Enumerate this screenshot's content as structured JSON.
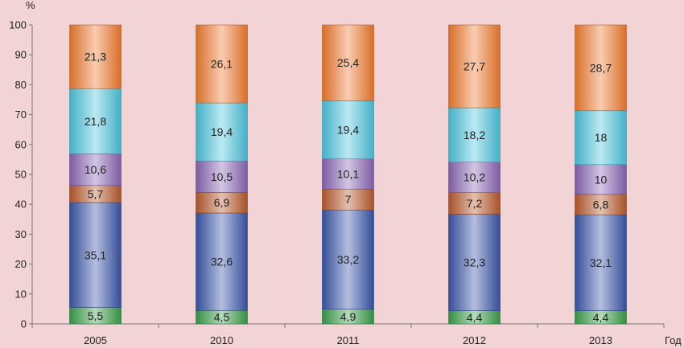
{
  "chart_data": {
    "type": "bar",
    "stacked": true,
    "ylabel": "%",
    "xlabel": "Год",
    "ylim": [
      0,
      100
    ],
    "yticks": [
      "0",
      "10",
      "20",
      "30",
      "40",
      "50",
      "60",
      "70",
      "80",
      "90",
      "100"
    ],
    "categories": [
      "2005",
      "2010",
      "2011",
      "2012",
      "2013"
    ],
    "grid": false,
    "legend": "none",
    "series": [
      {
        "color": "#3a9e4a",
        "values": [
          5.5,
          4.5,
          4.9,
          4.4,
          4.4
        ],
        "labels": [
          "5,5",
          "4,5",
          "4,9",
          "4,4",
          "4,4"
        ]
      },
      {
        "color": "#3a55a8",
        "values": [
          35.1,
          32.6,
          33.2,
          32.3,
          32.1
        ],
        "labels": [
          "35,1",
          "32,6",
          "33,2",
          "32,3",
          "32,1"
        ]
      },
      {
        "color": "#b85a2c",
        "values": [
          5.7,
          6.9,
          7,
          7.2,
          6.8
        ],
        "labels": [
          "5,7",
          "6,9",
          "7",
          "7,2",
          "6,8"
        ]
      },
      {
        "color": "#8a66b4",
        "values": [
          10.6,
          10.5,
          10.1,
          10.2,
          10
        ],
        "labels": [
          "10,6",
          "10,5",
          "10,1",
          "10,2",
          "10"
        ]
      },
      {
        "color": "#4cc4dc",
        "values": [
          21.8,
          19.4,
          19.4,
          18.2,
          18
        ],
        "labels": [
          "21,8",
          "19,4",
          "19,4",
          "18,2",
          "18"
        ]
      },
      {
        "color": "#f07a2e",
        "values": [
          21.3,
          26.1,
          25.4,
          27.7,
          28.7
        ],
        "labels": [
          "21,3",
          "26,1",
          "25,4",
          "27,7",
          "28,7"
        ]
      }
    ]
  }
}
